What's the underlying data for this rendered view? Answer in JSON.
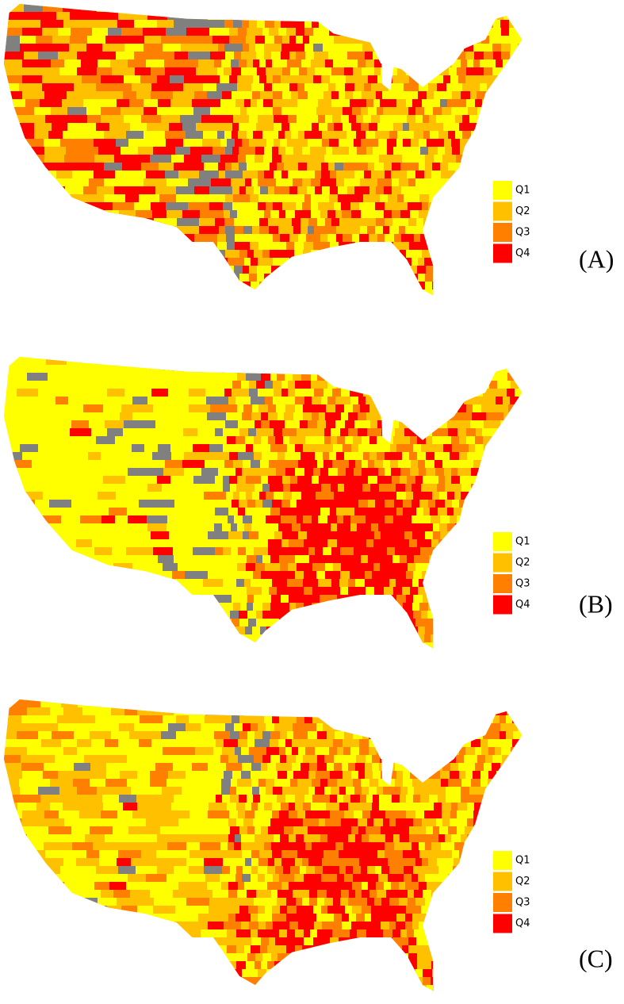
{
  "panels": [
    {
      "label": "(A)",
      "legend": [
        {
          "label": "Q1",
          "color": "#ffff00"
        },
        {
          "label": "Q2",
          "color": "#ffc000"
        },
        {
          "label": "Q3",
          "color": "#ff8000"
        },
        {
          "label": "Q4",
          "color": "#ff0000"
        }
      ]
    },
    {
      "label": "(B)",
      "legend": [
        {
          "label": "Q1",
          "color": "#ffff00"
        },
        {
          "label": "Q2",
          "color": "#ffc000"
        },
        {
          "label": "Q3",
          "color": "#ff8000"
        },
        {
          "label": "Q4",
          "color": "#ff0000"
        }
      ]
    },
    {
      "label": "(C)",
      "legend": [
        {
          "label": "Q1",
          "color": "#ffff00"
        },
        {
          "label": "Q2",
          "color": "#ffc000"
        },
        {
          "label": "Q3",
          "color": "#ff8000"
        },
        {
          "label": "Q4",
          "color": "#ff0000"
        }
      ]
    }
  ]
}
